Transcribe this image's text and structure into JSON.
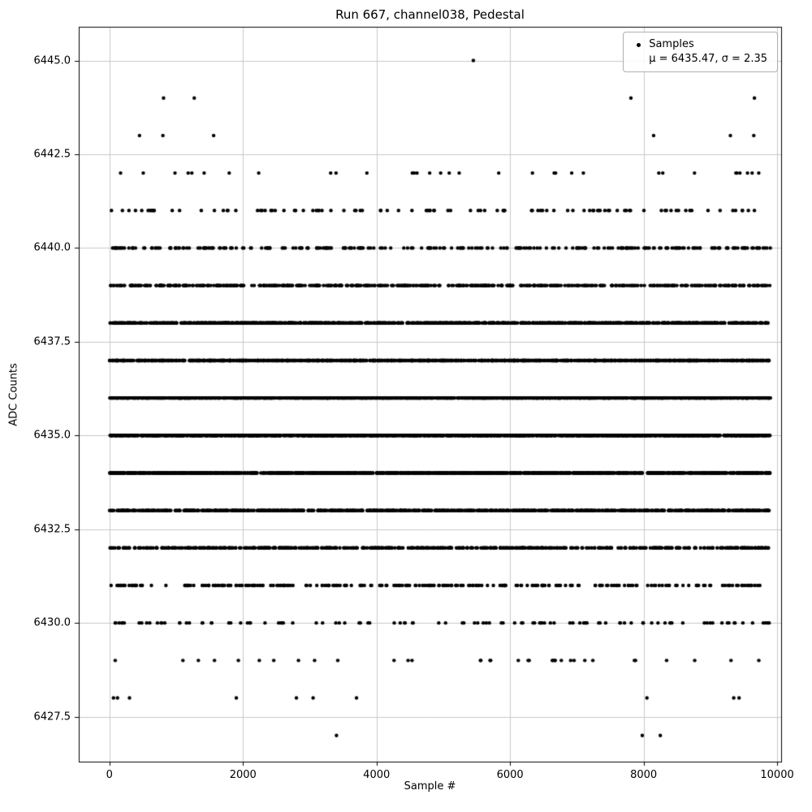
{
  "figure": {
    "title": "Run 667, channel038, Pedestal",
    "xlabel": "Sample #",
    "ylabel": "ADC Counts",
    "legend": {
      "label": "Samples",
      "stats": "μ = 6435.47, σ = 2.35"
    }
  },
  "chart_data": {
    "type": "scatter",
    "title": "Run 667, channel038, Pedestal",
    "xlabel": "Sample #",
    "ylabel": "ADC Counts",
    "legend_label": "Samples",
    "legend_position": "upper right",
    "mu": 6435.47,
    "sigma": 2.35,
    "grid": true,
    "xlim": [
      -460,
      10060
    ],
    "ylim": [
      6426.3,
      6445.9
    ],
    "xticks": [
      0,
      2000,
      4000,
      6000,
      8000,
      10000
    ],
    "yticks": [
      6427.5,
      6430.0,
      6432.5,
      6435.0,
      6437.5,
      6440.0,
      6442.5,
      6445.0
    ],
    "x_range": [
      0,
      9900
    ],
    "n_samples": 9857,
    "marker_color": "#000000",
    "grid_color": "#c8c8c8",
    "marker_radius": 2.2,
    "levels": [
      {
        "adc": 6427,
        "xs": [
          3400,
          7980,
          8250
        ]
      },
      {
        "adc": 6428,
        "xs": [
          60,
          120,
          300,
          1900,
          2800,
          3050,
          3700,
          8050,
          9350,
          9430
        ]
      },
      {
        "adc": 6429,
        "count": 35
      },
      {
        "adc": 6430,
        "count": 110
      },
      {
        "adc": 6431,
        "count": 270
      },
      {
        "adc": 6432,
        "count": 560
      },
      {
        "adc": 6433,
        "count": 960
      },
      {
        "adc": 6434,
        "count": 1380
      },
      {
        "adc": 6435,
        "count": 1645
      },
      {
        "adc": 6436,
        "count": 1635
      },
      {
        "adc": 6437,
        "count": 1360
      },
      {
        "adc": 6438,
        "count": 940
      },
      {
        "adc": 6439,
        "count": 545
      },
      {
        "adc": 6440,
        "count": 260
      },
      {
        "adc": 6441,
        "count": 105
      },
      {
        "adc": 6442,
        "count": 33
      },
      {
        "adc": 6443,
        "xs": [
          450,
          800,
          1560,
          8150,
          9300,
          9650
        ]
      },
      {
        "adc": 6444,
        "xs": [
          810,
          1270,
          7810,
          9660
        ]
      },
      {
        "adc": 6445,
        "xs": [
          5450
        ]
      }
    ]
  }
}
